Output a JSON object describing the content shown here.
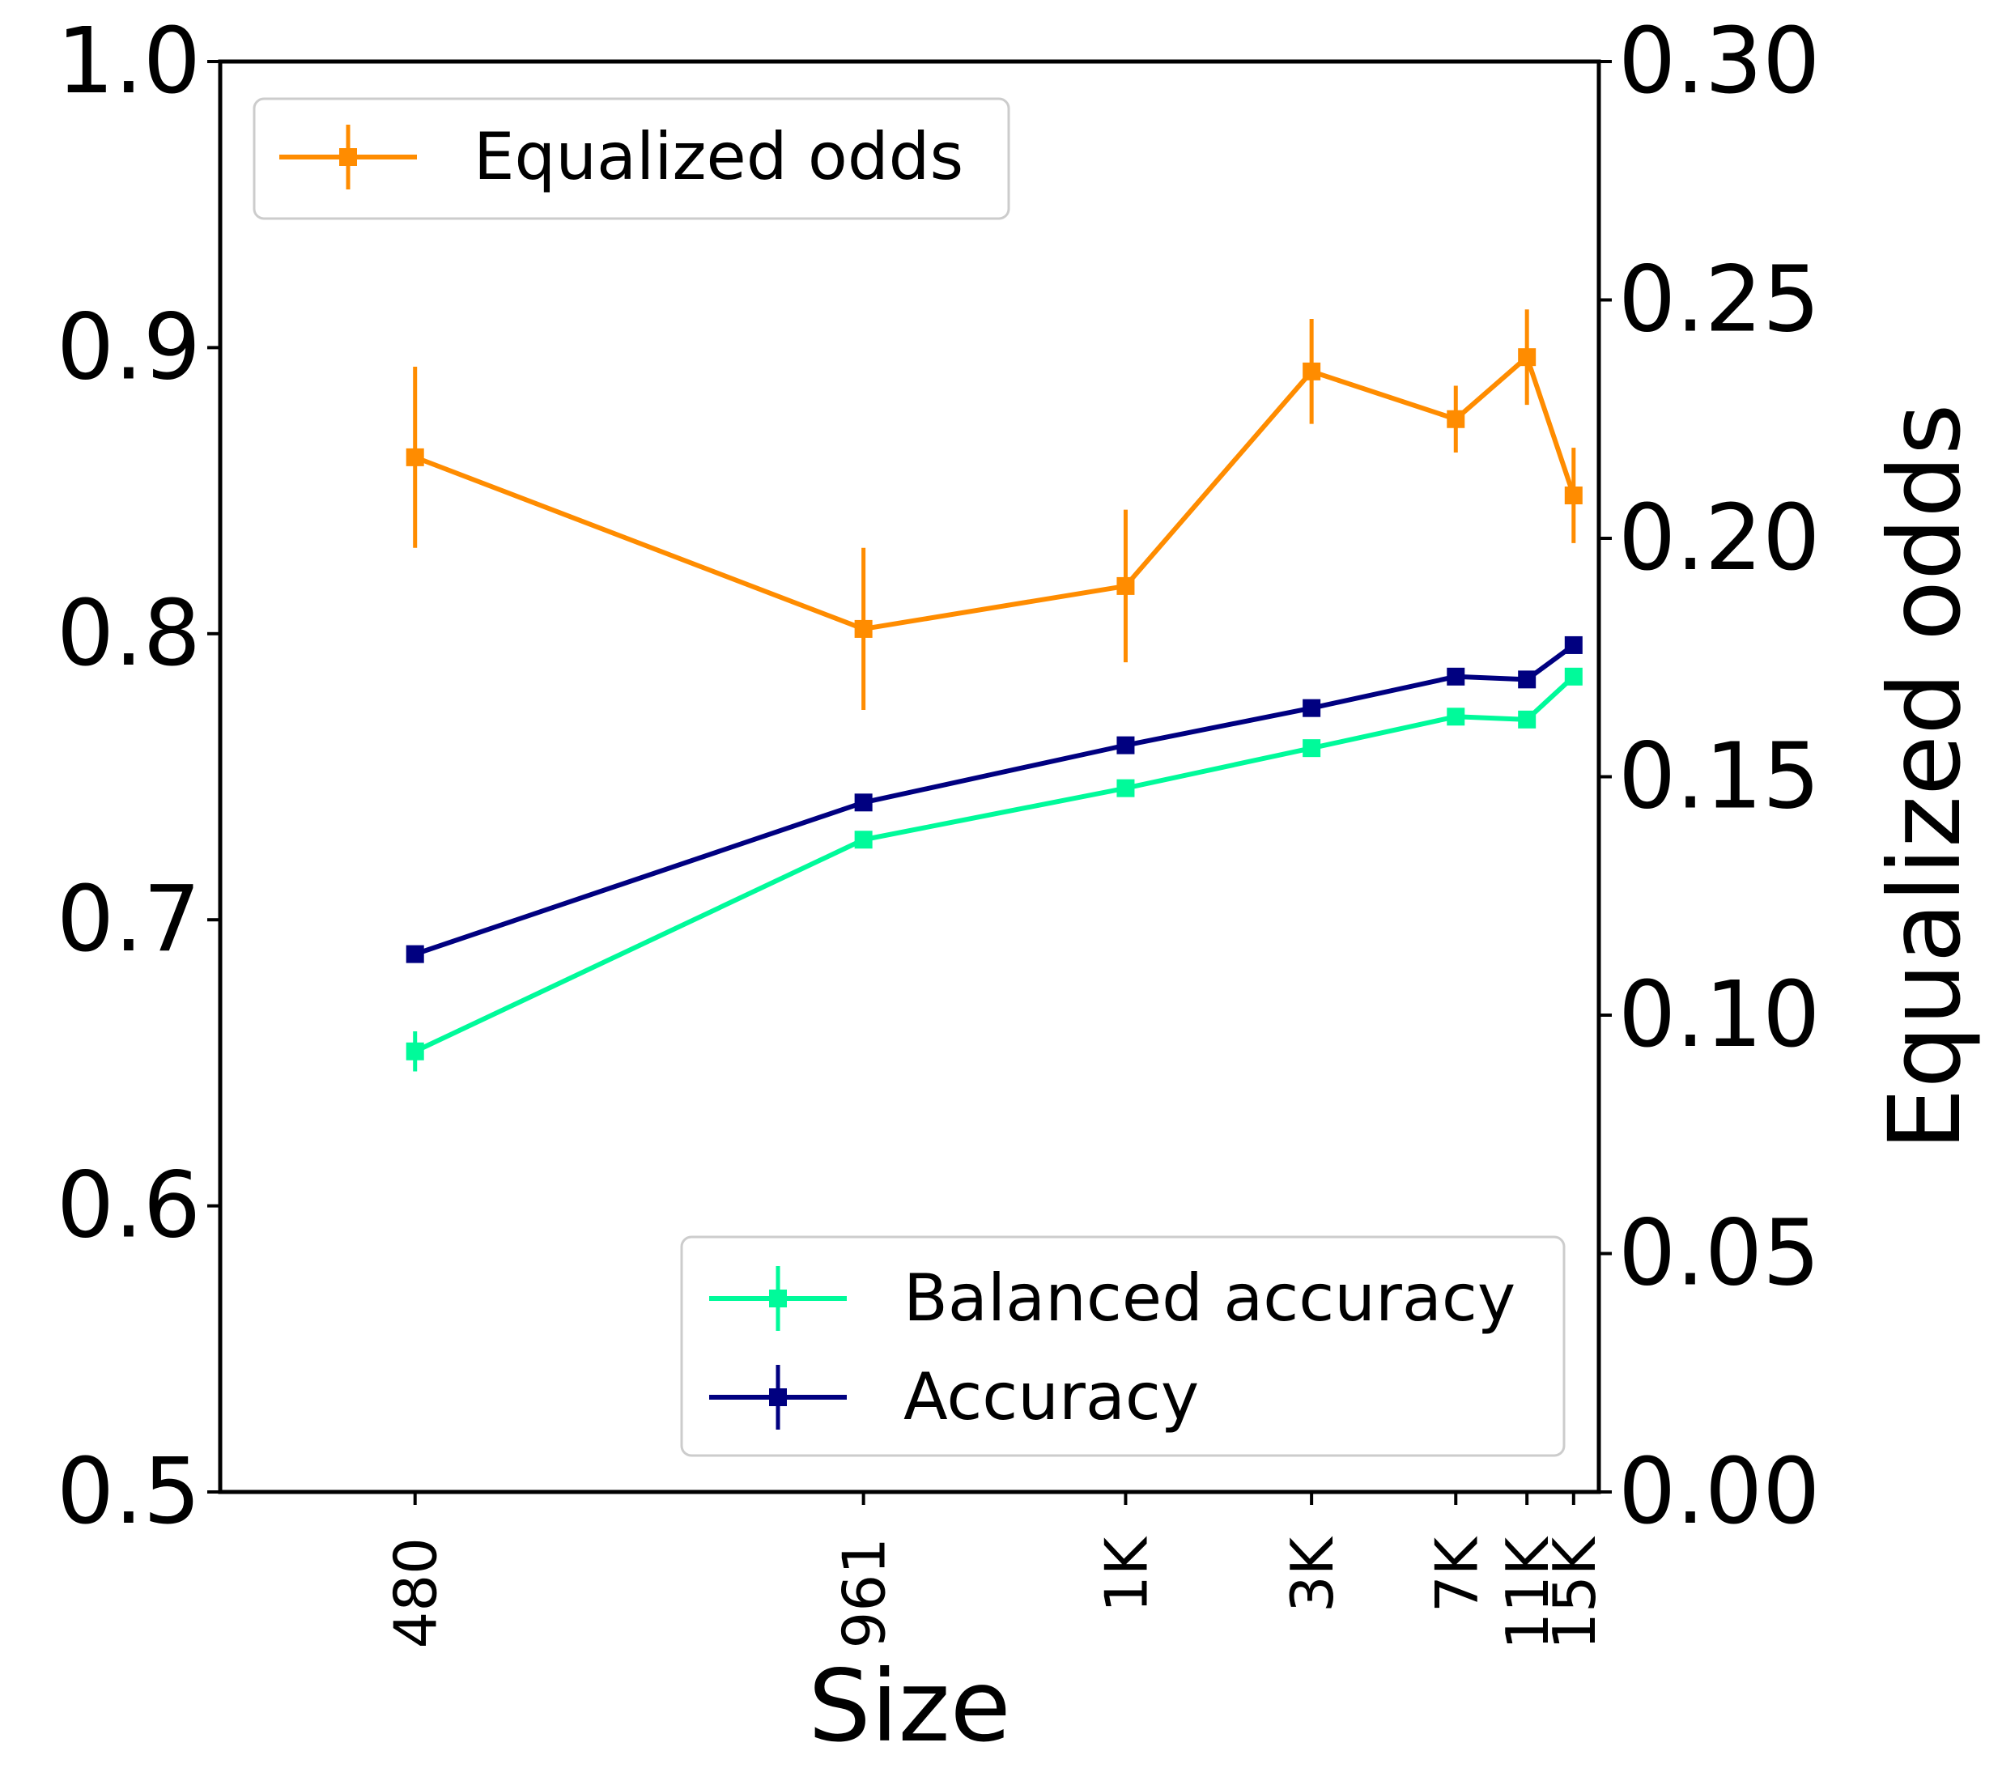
{
  "chart_data": {
    "type": "line",
    "title": "",
    "xlabel": "Size",
    "ylabel_left": "",
    "ylabel_right": "Equalized odds",
    "categories": [
      "480",
      "961",
      "1K",
      "3K",
      "7K",
      "11K",
      "15K"
    ],
    "x_positions": [
      480,
      961,
      1442,
      1923,
      2404,
      2684,
      2885
    ],
    "x_range": [
      355,
      3000
    ],
    "ylim_left": [
      0.5,
      1.0
    ],
    "yticks_left": [
      "0.5",
      "0.6",
      "0.7",
      "0.8",
      "0.9",
      "1.0"
    ],
    "ylim_right": [
      0.0,
      0.3
    ],
    "yticks_right": [
      "0.00",
      "0.05",
      "0.10",
      "0.15",
      "0.20",
      "0.25",
      "0.30"
    ],
    "grid": false,
    "series": [
      {
        "name": "Equalized odds",
        "axis": "right",
        "color": "#ff8c00",
        "marker": "square",
        "values": [
          0.217,
          0.181,
          0.19,
          0.235,
          0.225,
          0.238,
          0.209
        ],
        "errors": [
          0.019,
          0.017,
          0.016,
          0.011,
          0.007,
          0.01,
          0.01
        ]
      },
      {
        "name": "Balanced accuracy",
        "axis": "left",
        "color": "#00fa9a",
        "marker": "square",
        "values": [
          0.654,
          0.728,
          0.746,
          0.76,
          0.771,
          0.77,
          0.785
        ],
        "errors": [
          0.007,
          0.002,
          0.002,
          0.002,
          0.002,
          0.002,
          0.002
        ]
      },
      {
        "name": "Accuracy",
        "axis": "left",
        "color": "#000080",
        "marker": "square",
        "values": [
          0.688,
          0.741,
          0.761,
          0.774,
          0.785,
          0.784,
          0.796
        ],
        "errors": [
          0.003,
          0.002,
          0.002,
          0.002,
          0.002,
          0.002,
          0.002
        ]
      }
    ],
    "legends": [
      {
        "placement": "top-left",
        "entries": [
          "Equalized odds"
        ]
      },
      {
        "placement": "bottom-right",
        "entries": [
          "Balanced accuracy",
          "Accuracy"
        ]
      }
    ]
  }
}
